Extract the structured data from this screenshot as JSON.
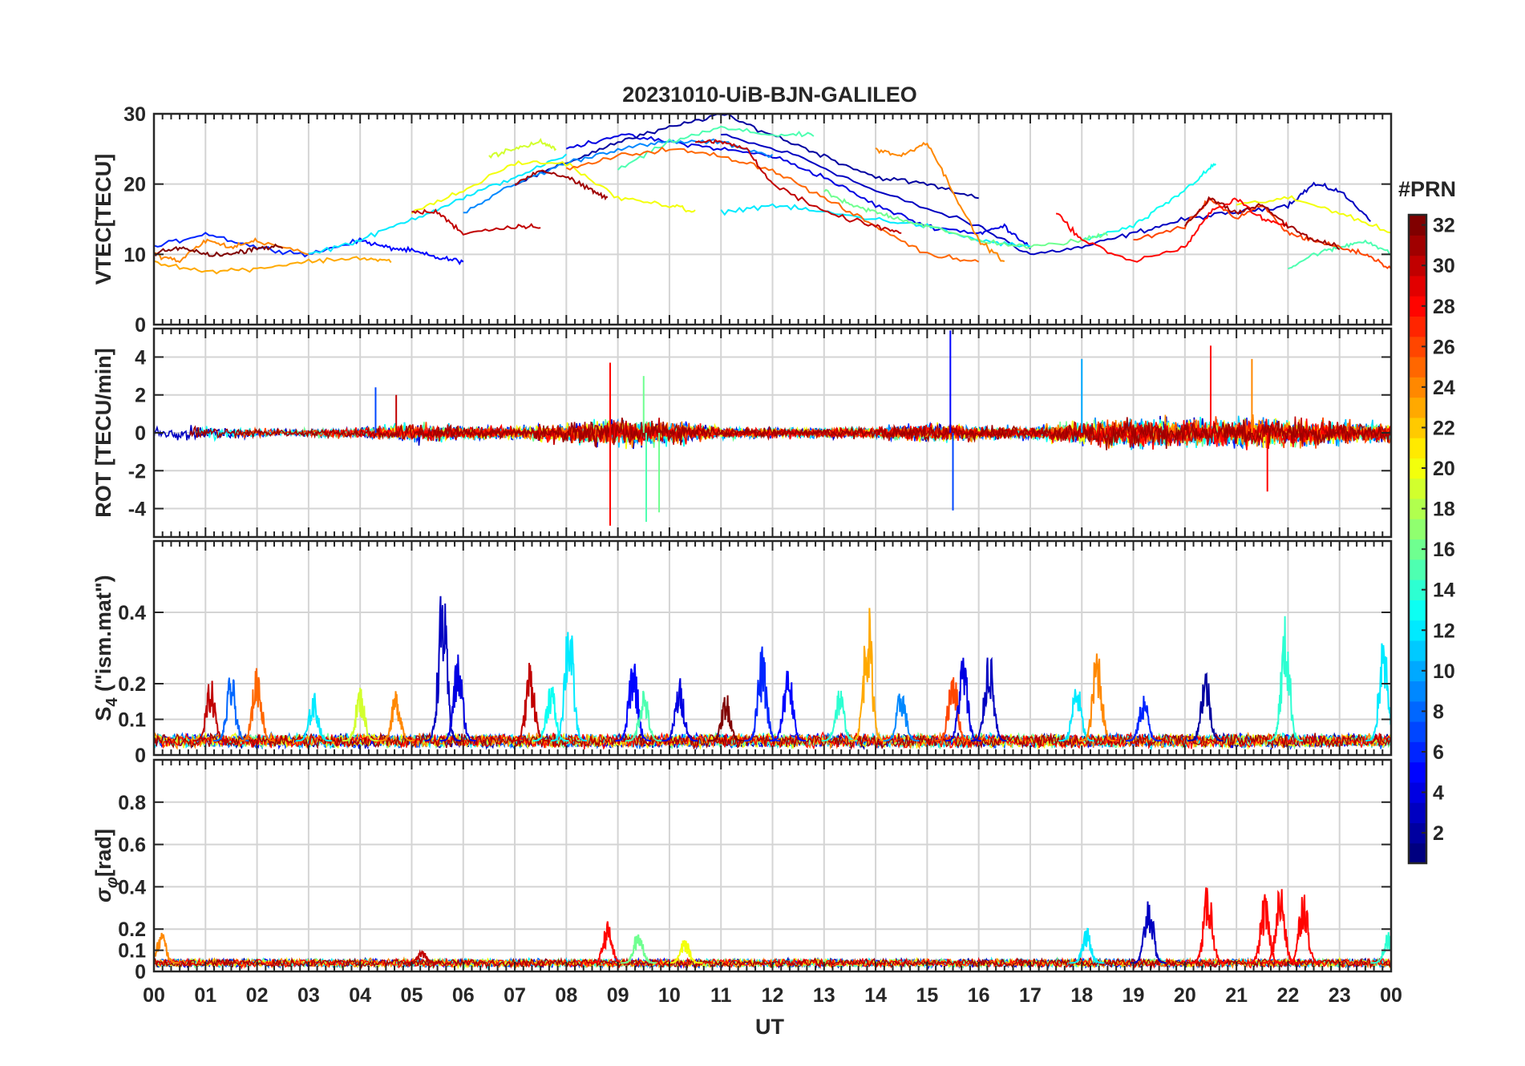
{
  "figure": {
    "title": "20231010-UiB-BJN-GALILEO",
    "xlabel": "UT",
    "x_ticks": [
      "00",
      "01",
      "02",
      "03",
      "04",
      "05",
      "06",
      "07",
      "08",
      "09",
      "10",
      "11",
      "12",
      "13",
      "14",
      "15",
      "16",
      "17",
      "18",
      "19",
      "20",
      "21",
      "22",
      "23",
      "00"
    ]
  },
  "colorbar": {
    "title": "#PRN",
    "range": [
      1,
      32
    ],
    "colormap": "jet",
    "ticks": [
      2,
      4,
      6,
      8,
      10,
      12,
      14,
      16,
      18,
      20,
      22,
      24,
      26,
      28,
      30,
      32
    ]
  },
  "chart_data": [
    {
      "type": "line",
      "id": "vtec",
      "ylabel": "VTEC[TECU]",
      "xlim": [
        0,
        24
      ],
      "ylim": [
        0,
        30
      ],
      "yticks": [
        0,
        10,
        20,
        30
      ],
      "grid": true,
      "series": [
        {
          "prn": 3,
          "x": [
            11.0,
            12.5,
            14.0,
            16.0,
            17.0,
            18.0,
            19.0,
            20.0,
            21.0,
            22.0,
            22.5,
            23.0,
            23.6
          ],
          "y": [
            27,
            24,
            19,
            14,
            10,
            11,
            13,
            15,
            16,
            17,
            20,
            19,
            15
          ]
        },
        {
          "prn": 5,
          "x": [
            4.0,
            4.5,
            5.0,
            5.5,
            6.0
          ],
          "y": [
            12,
            11,
            10.5,
            9.5,
            9
          ]
        },
        {
          "prn": 6,
          "x": [
            0.0,
            1.0,
            2.0,
            3.0,
            4.0
          ],
          "y": [
            11,
            13,
            11,
            10,
            12
          ]
        },
        {
          "prn": 4,
          "x": [
            8.0,
            9.0,
            10.0,
            11.0,
            12.0,
            13.0,
            14.0,
            15.0,
            16.0,
            16.5,
            17.0
          ],
          "y": [
            25,
            27,
            26,
            25,
            24,
            21,
            17,
            14,
            13,
            14,
            11
          ]
        },
        {
          "prn": 2,
          "x": [
            7.0,
            8.0,
            9.0,
            10.0,
            11.0,
            12.0,
            13.0,
            14.0,
            15.0,
            16.0
          ],
          "y": [
            20,
            23,
            26,
            28,
            30,
            27,
            24,
            21,
            20,
            18
          ]
        },
        {
          "prn": 9,
          "x": [
            6.0,
            7.0,
            8.0,
            9.0,
            10.0,
            11.0,
            12.0
          ],
          "y": [
            16,
            20,
            23,
            25,
            26,
            26,
            24
          ]
        },
        {
          "prn": 12,
          "x": [
            3.0,
            4.0,
            5.0,
            6.0,
            7.0,
            8.0
          ],
          "y": [
            10,
            12,
            15,
            18,
            21,
            24
          ]
        },
        {
          "prn": 12,
          "x": [
            11.0,
            12.0,
            13.0,
            14.0,
            15.0,
            16.0,
            17.0
          ],
          "y": [
            16,
            17,
            16,
            15,
            14,
            12,
            11
          ]
        },
        {
          "prn": 13,
          "x": [
            18.0,
            19.0,
            19.8,
            20.3,
            20.6
          ],
          "y": [
            12,
            14,
            18,
            21,
            23
          ]
        },
        {
          "prn": 15,
          "x": [
            9.0,
            10.0,
            11.0,
            12.0,
            12.8
          ],
          "y": [
            22,
            26,
            28,
            27,
            27
          ]
        },
        {
          "prn": 16,
          "x": [
            13.0,
            13.5,
            14.0,
            14.5,
            15.0,
            16.0,
            17.0,
            18.0,
            18.5
          ],
          "y": [
            19,
            17,
            16,
            15,
            14,
            12,
            11,
            12,
            13
          ]
        },
        {
          "prn": 15,
          "x": [
            22.0,
            22.5,
            23.0,
            23.5,
            24.0
          ],
          "y": [
            8,
            10,
            11,
            12,
            10
          ]
        },
        {
          "prn": 20,
          "x": [
            5.0,
            6.0,
            7.0,
            8.0,
            9.0,
            10.0,
            10.5
          ],
          "y": [
            16,
            19,
            23,
            23,
            18,
            17,
            16
          ]
        },
        {
          "prn": 19,
          "x": [
            6.5,
            7.0,
            7.5,
            7.8
          ],
          "y": [
            24,
            25,
            26,
            25
          ]
        },
        {
          "prn": 20,
          "x": [
            21.0,
            22.0,
            23.0,
            24.0
          ],
          "y": [
            17,
            18,
            16,
            13
          ]
        },
        {
          "prn": 24,
          "x": [
            14.0,
            14.5,
            15.0,
            15.5,
            16.0,
            16.5
          ],
          "y": [
            25,
            24,
            26,
            19,
            12,
            9
          ]
        },
        {
          "prn": 25,
          "x": [
            8.0,
            9.0,
            10.0,
            11.0,
            12.0,
            13.0,
            14.0,
            15.0,
            16.0
          ],
          "y": [
            22,
            24,
            25,
            24,
            22,
            18,
            14,
            10,
            9
          ]
        },
        {
          "prn": 23,
          "x": [
            0.0,
            1.0,
            2.0,
            3.0,
            4.0,
            4.6
          ],
          "y": [
            9,
            7.5,
            8,
            9,
            9.5,
            9
          ]
        },
        {
          "prn": 24,
          "x": [
            0.0,
            0.5,
            1.0,
            1.5,
            2.0,
            3.0
          ],
          "y": [
            10,
            9,
            12,
            11,
            12,
            10
          ]
        },
        {
          "prn": 26,
          "x": [
            19.0,
            20.0,
            20.5,
            21.0,
            21.5,
            22.0,
            22.5,
            23.0,
            23.5,
            24.0
          ],
          "y": [
            12,
            14,
            18,
            15,
            17,
            13,
            12,
            11,
            10,
            8
          ]
        },
        {
          "prn": 28,
          "x": [
            17.5,
            18.0,
            19.0,
            20.0,
            20.5,
            21.0,
            21.5,
            22.0
          ],
          "y": [
            16,
            12,
            9,
            11,
            16,
            18,
            15,
            14
          ]
        },
        {
          "prn": 30,
          "x": [
            5.0,
            5.5,
            6.0,
            7.0,
            7.5
          ],
          "y": [
            16,
            16,
            13,
            14,
            14
          ]
        },
        {
          "prn": 30,
          "x": [
            10.5,
            11.0,
            11.5,
            12.0,
            13.0,
            14.0,
            14.5
          ],
          "y": [
            26,
            26,
            25,
            20,
            16,
            14,
            13
          ]
        },
        {
          "prn": 32,
          "x": [
            0.0,
            0.5,
            1.0,
            1.5,
            2.0,
            2.5
          ],
          "y": [
            10,
            11,
            10,
            10,
            11,
            11
          ]
        },
        {
          "prn": 31,
          "x": [
            7.0,
            7.5,
            8.0,
            8.5,
            8.8
          ],
          "y": [
            20,
            22,
            21,
            19,
            18
          ]
        },
        {
          "prn": 31,
          "x": [
            20.0,
            20.5,
            21.0,
            21.5,
            22.0,
            22.5,
            23.0
          ],
          "y": [
            14,
            18,
            16,
            17,
            14,
            12,
            11
          ]
        }
      ]
    },
    {
      "type": "line",
      "id": "rot",
      "ylabel": "ROT [TECU/min]",
      "xlim": [
        0,
        24
      ],
      "ylim": [
        -5.5,
        5.5
      ],
      "yticks": [
        -4,
        -2,
        0,
        2,
        4
      ],
      "grid": true,
      "noise_profile": {
        "x": [
          0,
          1,
          2,
          3,
          4,
          5,
          6,
          7,
          8,
          9,
          10,
          11,
          12,
          13,
          14,
          15,
          16,
          17,
          18,
          19,
          20,
          21,
          22,
          23,
          24
        ],
        "amplitude": [
          0.6,
          0.6,
          0.4,
          0.3,
          0.5,
          0.8,
          0.6,
          0.5,
          0.8,
          1.2,
          1.0,
          0.5,
          0.4,
          0.4,
          0.5,
          0.8,
          0.6,
          0.5,
          1.0,
          1.2,
          1.2,
          1.3,
          1.2,
          0.9,
          0.8
        ]
      },
      "spikes": [
        {
          "prn": 28,
          "x": 8.85,
          "y": 3.7
        },
        {
          "prn": 28,
          "x": 8.85,
          "y": -4.9
        },
        {
          "prn": 16,
          "x": 9.5,
          "y": 3.0
        },
        {
          "prn": 15,
          "x": 9.55,
          "y": -4.7
        },
        {
          "prn": 16,
          "x": 9.8,
          "y": -4.2
        },
        {
          "prn": 5,
          "x": 15.45,
          "y": 5.4
        },
        {
          "prn": 7,
          "x": 15.5,
          "y": -4.1
        },
        {
          "prn": 10,
          "x": 18.0,
          "y": 3.9
        },
        {
          "prn": 28,
          "x": 20.5,
          "y": 4.6
        },
        {
          "prn": 24,
          "x": 21.3,
          "y": 3.9
        },
        {
          "prn": 28,
          "x": 21.6,
          "y": -3.1
        },
        {
          "prn": 7,
          "x": 4.3,
          "y": 2.4
        },
        {
          "prn": 30,
          "x": 4.7,
          "y": 2.0
        }
      ]
    },
    {
      "type": "line",
      "id": "s4",
      "ylabel": "S4 (\"ism.mat\")",
      "ylabel_main": "S",
      "ylabel_sub": "4",
      "ylabel_rest": " (\"ism.mat\")",
      "xlim": [
        0,
        24
      ],
      "ylim": [
        0,
        0.6
      ],
      "yticks": [
        0,
        0.1,
        0.2,
        0.4
      ],
      "grid": true,
      "baseline": 0.04,
      "bursts": [
        {
          "prn": 30,
          "x": 1.1,
          "peak": 0.22
        },
        {
          "prn": 8,
          "x": 1.5,
          "peak": 0.24
        },
        {
          "prn": 25,
          "x": 2.0,
          "peak": 0.27
        },
        {
          "prn": 12,
          "x": 3.1,
          "peak": 0.18
        },
        {
          "prn": 19,
          "x": 4.0,
          "peak": 0.2
        },
        {
          "prn": 24,
          "x": 4.7,
          "peak": 0.19
        },
        {
          "prn": 3,
          "x": 5.6,
          "peak": 0.5
        },
        {
          "prn": 4,
          "x": 5.9,
          "peak": 0.3
        },
        {
          "prn": 30,
          "x": 7.3,
          "peak": 0.28
        },
        {
          "prn": 13,
          "x": 7.7,
          "peak": 0.22
        },
        {
          "prn": 12,
          "x": 8.05,
          "peak": 0.43
        },
        {
          "prn": 5,
          "x": 9.3,
          "peak": 0.3
        },
        {
          "prn": 15,
          "x": 9.5,
          "peak": 0.2
        },
        {
          "prn": 4,
          "x": 10.2,
          "peak": 0.22
        },
        {
          "prn": 32,
          "x": 11.1,
          "peak": 0.18
        },
        {
          "prn": 6,
          "x": 11.8,
          "peak": 0.31
        },
        {
          "prn": 5,
          "x": 12.3,
          "peak": 0.28
        },
        {
          "prn": 14,
          "x": 13.3,
          "peak": 0.2
        },
        {
          "prn": 23,
          "x": 13.85,
          "peak": 0.44
        },
        {
          "prn": 9,
          "x": 14.5,
          "peak": 0.2
        },
        {
          "prn": 26,
          "x": 15.5,
          "peak": 0.27
        },
        {
          "prn": 4,
          "x": 15.7,
          "peak": 0.3
        },
        {
          "prn": 3,
          "x": 16.2,
          "peak": 0.32
        },
        {
          "prn": 12,
          "x": 17.9,
          "peak": 0.22
        },
        {
          "prn": 24,
          "x": 18.3,
          "peak": 0.33
        },
        {
          "prn": 6,
          "x": 19.2,
          "peak": 0.18
        },
        {
          "prn": 2,
          "x": 20.4,
          "peak": 0.26
        },
        {
          "prn": 14,
          "x": 21.95,
          "peak": 0.4
        },
        {
          "prn": 12,
          "x": 23.85,
          "peak": 0.35
        }
      ]
    },
    {
      "type": "line",
      "id": "sigma",
      "ylabel": "σφ[rad]",
      "ylabel_main": "σ",
      "ylabel_sub": "φ",
      "ylabel_rest": "[rad]",
      "xlim": [
        0,
        24
      ],
      "ylim": [
        0,
        1.0
      ],
      "yticks": [
        0,
        0.1,
        0.2,
        0.4,
        0.6,
        0.8
      ],
      "grid": true,
      "baseline": 0.04,
      "bursts": [
        {
          "prn": 24,
          "x": 0.15,
          "peak": 0.2
        },
        {
          "prn": 30,
          "x": 5.2,
          "peak": 0.1
        },
        {
          "prn": 28,
          "x": 8.8,
          "peak": 0.24
        },
        {
          "prn": 16,
          "x": 9.4,
          "peak": 0.21
        },
        {
          "prn": 20,
          "x": 10.3,
          "peak": 0.16
        },
        {
          "prn": 12,
          "x": 18.1,
          "peak": 0.21
        },
        {
          "prn": 3,
          "x": 19.3,
          "peak": 0.38
        },
        {
          "prn": 28,
          "x": 20.45,
          "peak": 0.44
        },
        {
          "prn": 28,
          "x": 21.55,
          "peak": 0.37
        },
        {
          "prn": 28,
          "x": 21.85,
          "peak": 0.44
        },
        {
          "prn": 28,
          "x": 22.3,
          "peak": 0.42
        },
        {
          "prn": 14,
          "x": 23.95,
          "peak": 0.19
        }
      ]
    }
  ]
}
